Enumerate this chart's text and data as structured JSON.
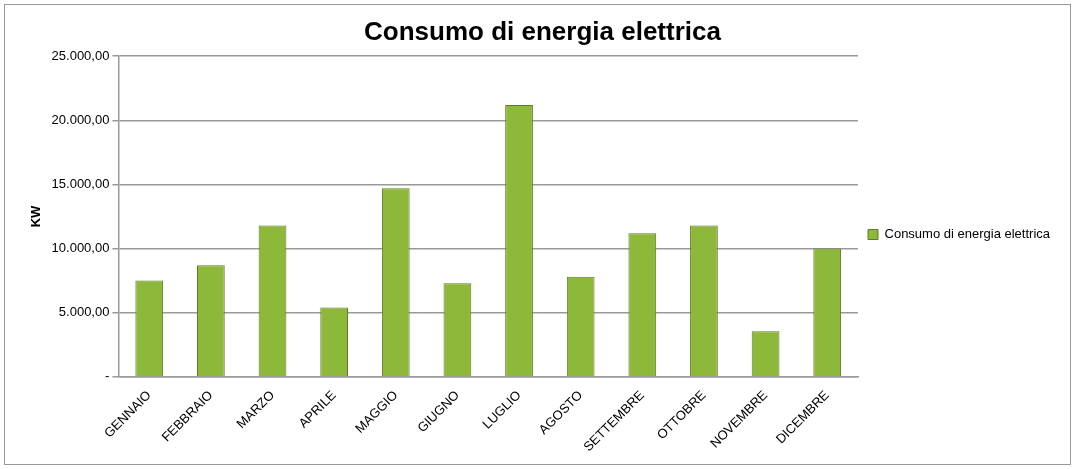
{
  "chart_data": {
    "type": "bar",
    "title": "Consumo di energia elettrica",
    "ylabel": "KW",
    "categories": [
      "GENNAIO",
      "FEBBRAIO",
      "MARZO",
      "APRILE",
      "MAGGIO",
      "GIUGNO",
      "LUGLIO",
      "AGOSTO",
      "SETTEMBRE",
      "OTTOBRE",
      "NOVEMBRE",
      "DICEMBRE"
    ],
    "series": [
      {
        "name": "Consumo di energia elettrica",
        "color": "#8db83a",
        "values": [
          7500,
          8700,
          11800,
          5400,
          14700,
          7300,
          21200,
          7800,
          11200,
          11800,
          3550,
          10000
        ]
      }
    ],
    "ylim": [
      0,
      25000
    ],
    "yticks": [
      {
        "value": 0,
        "label": "-"
      },
      {
        "value": 5000,
        "label": "5.000,00"
      },
      {
        "value": 10000,
        "label": "10.000,00"
      },
      {
        "value": 15000,
        "label": "15.000,00"
      },
      {
        "value": 20000,
        "label": "20.000,00"
      },
      {
        "value": 25000,
        "label": "25.000,00"
      }
    ],
    "grid": "y",
    "legend": "right"
  }
}
